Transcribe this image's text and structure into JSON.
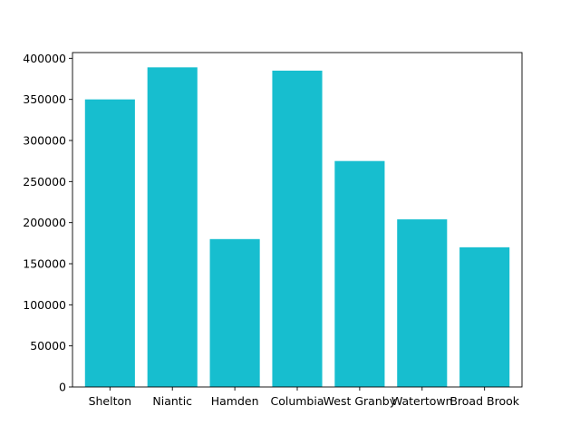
{
  "colors": {
    "bar": "#17becf",
    "axis": "#000000",
    "background": "#ffffff"
  },
  "chart_data": {
    "type": "bar",
    "title": "",
    "xlabel": "",
    "ylabel": "",
    "categories": [
      "Shelton",
      "Niantic",
      "Hamden",
      "Columbia",
      "West Granby",
      "Watertown",
      "Broad Brook"
    ],
    "values": [
      350000,
      389000,
      180000,
      385000,
      275000,
      204000,
      170000
    ],
    "ylim": [
      0,
      407000
    ],
    "yticks": [
      0,
      50000,
      100000,
      150000,
      200000,
      250000,
      300000,
      350000,
      400000
    ],
    "ytick_labels": [
      "0",
      "50000",
      "100000",
      "150000",
      "200000",
      "250000",
      "300000",
      "350000",
      "400000"
    ],
    "grid": false,
    "legend": "none"
  }
}
